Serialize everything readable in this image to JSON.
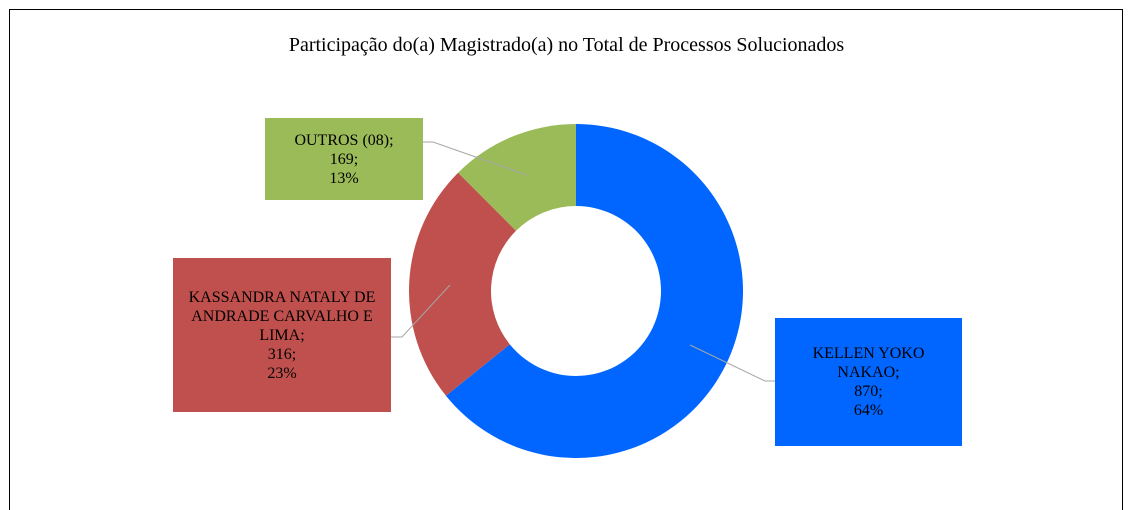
{
  "chart_data": {
    "type": "donut",
    "title": "Participação do(a) Magistrado(a) no Total de Processos Solucionados",
    "categories": [
      "KELLEN YOKO NAKAO;",
      "KASSANDRA NATALY DE ANDRADE CARVALHO E LIMA;",
      "OUTROS (08);"
    ],
    "values": [
      870,
      316,
      169
    ],
    "value_labels": [
      "870;",
      "316;",
      "169;"
    ],
    "percents": [
      64,
      23,
      13
    ],
    "percent_labels": [
      "64%",
      "23%",
      "13%"
    ],
    "colors": [
      "#0066ff",
      "#c0504d",
      "#9bbb59"
    ]
  }
}
